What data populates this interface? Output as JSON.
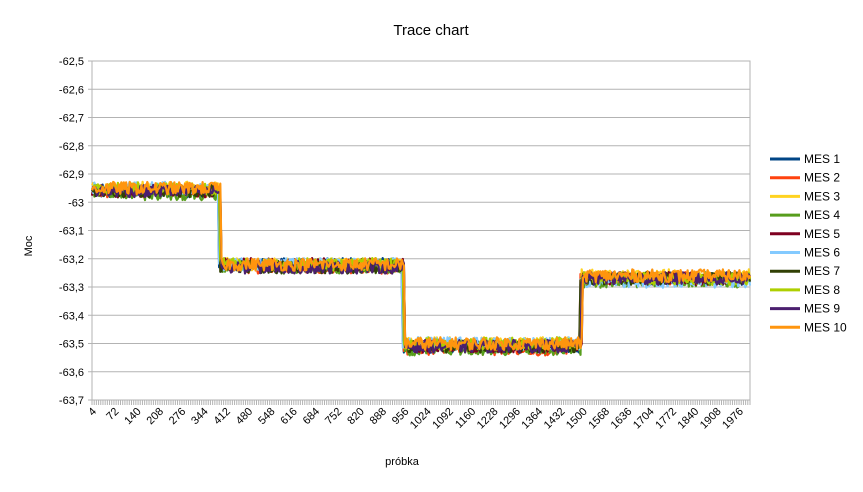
{
  "chart_data": {
    "type": "line",
    "title": "Trace chart",
    "xlabel": "próbka",
    "ylabel": "Moc",
    "ylim": [
      -63.7,
      -62.5
    ],
    "y_ticks": [
      "-62,5",
      "-62,6",
      "-62,7",
      "-62,8",
      "-62,9",
      "-63",
      "-63,1",
      "-63,2",
      "-63,3",
      "-63,4",
      "-63,5",
      "-63,6",
      "-63,7"
    ],
    "x_range": [
      4,
      2010
    ],
    "x_tick_labels": [
      "4",
      "72",
      "140",
      "208",
      "276",
      "344",
      "412",
      "480",
      "548",
      "616",
      "684",
      "752",
      "820",
      "888",
      "956",
      "1024",
      "1092",
      "1160",
      "1228",
      "1296",
      "1364",
      "1432",
      "1500",
      "1568",
      "1636",
      "1704",
      "1772",
      "1840",
      "1908",
      "1976"
    ],
    "grid": "horizontal",
    "legend_position": "right",
    "series": [
      {
        "name": "MES 1",
        "color": "#004586",
        "levels": [
          -62.96,
          -63.22,
          -63.51,
          -63.27
        ]
      },
      {
        "name": "MES 2",
        "color": "#ff420e",
        "levels": [
          -62.96,
          -63.23,
          -63.52,
          -63.27
        ]
      },
      {
        "name": "MES 3",
        "color": "#ffd320",
        "levels": [
          -62.95,
          -63.22,
          -63.5,
          -63.26
        ]
      },
      {
        "name": "MES 4",
        "color": "#579d1c",
        "levels": [
          -62.97,
          -63.23,
          -63.52,
          -63.28
        ]
      },
      {
        "name": "MES 5",
        "color": "#7e0021",
        "levels": [
          -62.96,
          -63.22,
          -63.51,
          -63.27
        ]
      },
      {
        "name": "MES 6",
        "color": "#83caff",
        "levels": [
          -62.95,
          -63.22,
          -63.5,
          -63.28
        ]
      },
      {
        "name": "MES 7",
        "color": "#314004",
        "levels": [
          -62.96,
          -63.23,
          -63.51,
          -63.27
        ]
      },
      {
        "name": "MES 8",
        "color": "#aecf00",
        "levels": [
          -62.95,
          -63.22,
          -63.5,
          -63.27
        ]
      },
      {
        "name": "MES 9",
        "color": "#4b1f6f",
        "levels": [
          -62.96,
          -63.23,
          -63.51,
          -63.27
        ]
      },
      {
        "name": "MES 10",
        "color": "#ff950e",
        "levels": [
          -62.95,
          -63.22,
          -63.5,
          -63.26
        ]
      }
    ],
    "step_points": [
      390,
      950,
      1490
    ]
  }
}
